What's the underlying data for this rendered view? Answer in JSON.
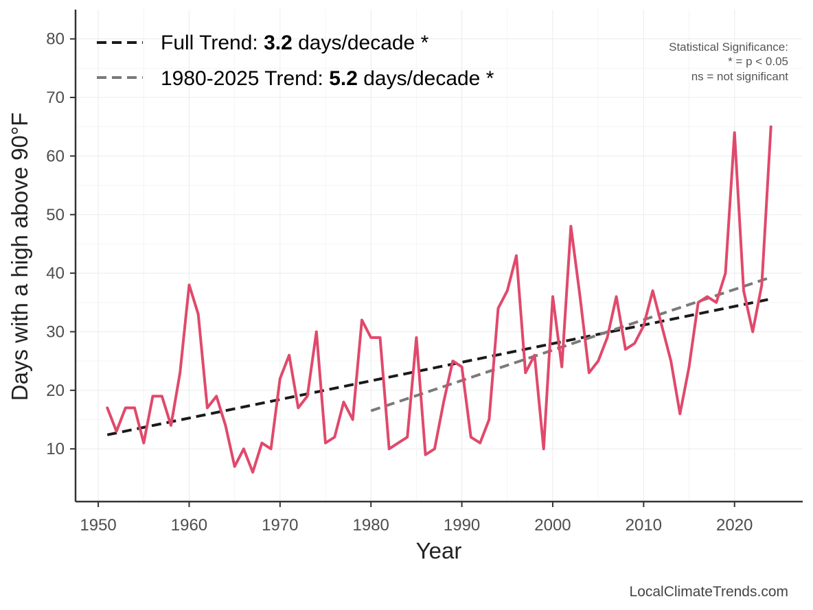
{
  "chart_data": {
    "type": "line",
    "xlabel": "Year",
    "ylabel": "Days with a high above 90°F",
    "xlim": [
      1947.5,
      2027.5
    ],
    "ylim": [
      1,
      85
    ],
    "xticks": [
      1950,
      1960,
      1970,
      1980,
      1990,
      2000,
      2010,
      2020
    ],
    "yticks": [
      10,
      20,
      30,
      40,
      50,
      60,
      70,
      80
    ],
    "grid": true,
    "legend_position": "top-left",
    "colors": {
      "data": "#e0496b",
      "full_trend": "#1a1a1a",
      "recent_trend": "#7a7a7a"
    },
    "series": [
      {
        "x": [
          1951,
          1952,
          1953,
          1954,
          1955,
          1956,
          1957,
          1958,
          1959,
          1960,
          1961,
          1962,
          1963,
          1964,
          1965,
          1966,
          1967,
          1968,
          1969,
          1970,
          1971,
          1972,
          1973,
          1974,
          1975,
          1976,
          1977,
          1978,
          1979,
          1980,
          1981,
          1982,
          1983,
          1984,
          1985,
          1986,
          1987,
          1988,
          1989,
          1990,
          1991,
          1992,
          1993,
          1994,
          1995,
          1996,
          1997,
          1998,
          1999,
          2000,
          2001,
          2002,
          2003,
          2004,
          2005,
          2006,
          2007,
          2008,
          2009,
          2010,
          2011,
          2012,
          2013,
          2014,
          2015,
          2016,
          2017,
          2018,
          2019,
          2020,
          2021,
          2022,
          2023,
          2024
        ],
        "values": [
          17,
          13,
          17,
          17,
          11,
          19,
          19,
          14,
          23,
          38,
          33,
          17,
          19,
          14,
          7,
          10,
          6,
          11,
          10,
          22,
          26,
          17,
          19,
          30,
          11,
          12,
          18,
          15,
          32,
          29,
          29,
          10,
          11,
          12,
          29,
          9,
          10,
          18,
          25,
          24,
          12,
          11,
          15,
          34,
          37,
          43,
          23,
          26,
          10,
          36,
          24,
          48,
          36,
          23,
          25,
          29,
          36,
          27,
          28,
          31,
          37,
          31,
          25,
          16,
          24,
          35,
          36,
          35,
          40,
          64,
          37,
          30,
          38,
          65
        ]
      }
    ],
    "trend_lines": [
      {
        "key": "full",
        "x": [
          1951,
          2024
        ],
        "y": [
          12.4,
          35.6
        ]
      },
      {
        "key": "recent",
        "x": [
          1980,
          2024
        ],
        "y": [
          16.5,
          39.3
        ]
      }
    ],
    "legend": [
      {
        "prefix": "Full Trend: ",
        "value": "3.2",
        "suffix": " days/decade *"
      },
      {
        "prefix": "1980-2025 Trend: ",
        "value": "5.2",
        "suffix": " days/decade *"
      }
    ],
    "annotations": {
      "significance_title": "Statistical Significance:",
      "significance_p": "* = p < 0.05",
      "significance_ns": "ns = not significant"
    },
    "credit": "LocalClimateTrends.com"
  }
}
